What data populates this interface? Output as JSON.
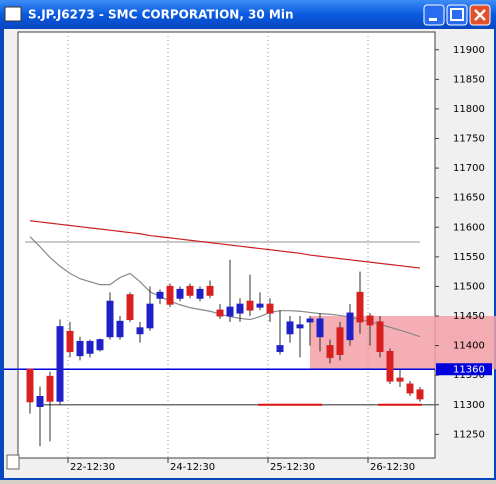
{
  "window": {
    "title": "S.JP.J6273 - SMC CORPORATION, 30 Min"
  },
  "chart_data": {
    "type": "candlestick",
    "categories": [
      null,
      null,
      null,
      null,
      "22-12:30",
      null,
      null,
      null,
      null,
      null,
      null,
      null,
      null,
      null,
      "24-12:30",
      null,
      null,
      null,
      null,
      null,
      null,
      null,
      null,
      null,
      "25-12:30",
      null,
      null,
      null,
      null,
      null,
      null,
      null,
      null,
      null,
      "26-12:30",
      null,
      null,
      null,
      null,
      null
    ],
    "open": [
      11360,
      11297,
      11348,
      11306,
      11424,
      11383,
      11387,
      11393,
      11415,
      11415,
      11486,
      11420,
      11430,
      11480,
      11500,
      11480,
      11500,
      11480,
      11500,
      11460,
      11450,
      11455,
      11475,
      11465,
      11470,
      11390,
      11420,
      11430,
      11440,
      11415,
      11400,
      11430,
      11410,
      11490,
      11450,
      11440,
      11390,
      11345,
      11335,
      11325
    ],
    "high": [
      11360,
      11331,
      11356,
      11444,
      11440,
      11415,
      11410,
      11412,
      11490,
      11450,
      11490,
      11440,
      11500,
      11495,
      11505,
      11500,
      11505,
      11500,
      11510,
      11470,
      11545,
      11480,
      11520,
      11490,
      11480,
      11460,
      11450,
      11450,
      11450,
      11455,
      11410,
      11440,
      11470,
      11525,
      11455,
      11450,
      11395,
      11360,
      11340,
      11330
    ],
    "low": [
      11285,
      11230,
      11238,
      11300,
      11380,
      11375,
      11380,
      11390,
      11410,
      11410,
      11440,
      11405,
      11425,
      11470,
      11465,
      11475,
      11480,
      11475,
      11480,
      11445,
      11440,
      11440,
      11450,
      11460,
      11440,
      11385,
      11405,
      11380,
      11400,
      11390,
      11370,
      11375,
      11400,
      11420,
      11400,
      11380,
      11335,
      11330,
      11315,
      11305
    ],
    "close": [
      11305,
      11314,
      11306,
      11432,
      11390,
      11407,
      11407,
      11410,
      11475,
      11441,
      11444,
      11430,
      11470,
      11490,
      11470,
      11495,
      11485,
      11495,
      11485,
      11450,
      11465,
      11470,
      11460,
      11470,
      11455,
      11400,
      11440,
      11435,
      11445,
      11445,
      11380,
      11385,
      11455,
      11440,
      11435,
      11390,
      11340,
      11340,
      11320,
      11310
    ],
    "up_color": "#2020c8",
    "down_color": "#d82020",
    "series": [
      {
        "color": "#888888",
        "values": [
          11584,
          11567,
          11549,
          11534,
          11522,
          11513,
          11508,
          11503,
          11503,
          11515,
          11522,
          11508,
          11491,
          11483,
          11475,
          11469,
          11464,
          11461,
          11458,
          11453,
          11449,
          11446,
          11444,
          11449,
          11456,
          11459,
          11459,
          11458,
          11456,
          11454,
          11453,
          11451,
          11448,
          11444,
          11441,
          11436,
          11431,
          11426,
          11421,
          11415
        ]
      },
      {
        "color": "#cc2020",
        "values": [
          11611,
          11609,
          11607,
          11605,
          11603,
          11601,
          11599,
          11597,
          11595,
          11593,
          11591,
          11589,
          11586,
          11584,
          11582,
          11580,
          11578,
          11576,
          11574,
          11572,
          11570,
          11568,
          11566,
          11564,
          11562,
          11560,
          11558,
          11556,
          11553,
          11551,
          11549,
          11547,
          11545,
          11543,
          11541,
          11539,
          11537,
          11535,
          11533,
          11531
        ]
      }
    ],
    "levels": [
      {
        "value": 11575,
        "color": "#b8b8b8"
      },
      {
        "value": 11300,
        "color": "#707070"
      },
      {
        "value": 11360,
        "color": "#0000dd",
        "label": "11360"
      }
    ],
    "zone": {
      "from": 11360,
      "to": 11450,
      "start": 29,
      "color": "#f4a0a8"
    },
    "segments": [
      {
        "value": 11300,
        "start": 23,
        "end": 29,
        "color": "#dd1010"
      },
      {
        "value": 11300,
        "start": 35,
        "end": 39,
        "color": "#dd1010"
      }
    ],
    "ylim": [
      11210,
      11930
    ],
    "yticks": [
      11250,
      11300,
      11350,
      11400,
      11450,
      11500,
      11550,
      11600,
      11650,
      11700,
      11750,
      11800,
      11850,
      11900
    ]
  }
}
